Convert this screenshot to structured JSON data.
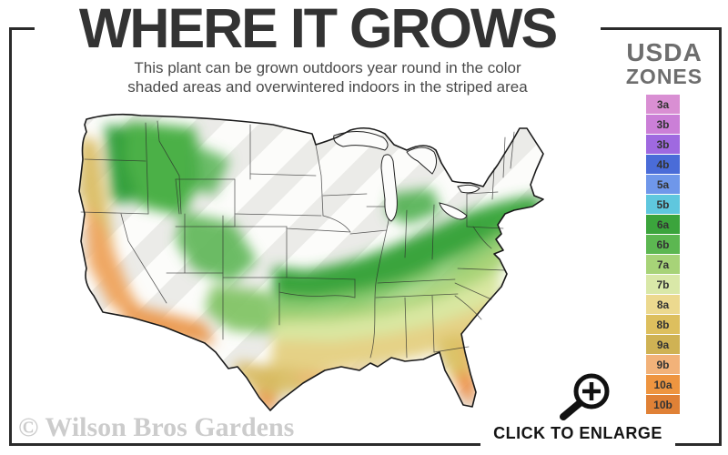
{
  "title": "WHERE IT GROWS",
  "subtitle": {
    "line1": "This plant can be grown outdoors year round in the color",
    "line2": "shaded areas and overwintered indoors in the striped area"
  },
  "legend": {
    "heading_line1": "USDA",
    "heading_line2": "ZONES",
    "zones": [
      {
        "label": "3a",
        "color": "#d98fd3"
      },
      {
        "label": "3b",
        "color": "#cb7fd7"
      },
      {
        "label": "3b",
        "color": "#9f69e0"
      },
      {
        "label": "4b",
        "color": "#4a6cd8"
      },
      {
        "label": "5a",
        "color": "#6f97ea"
      },
      {
        "label": "5b",
        "color": "#5fc7de"
      },
      {
        "label": "6a",
        "color": "#3ba43c"
      },
      {
        "label": "6b",
        "color": "#5cb751"
      },
      {
        "label": "7a",
        "color": "#a7d378"
      },
      {
        "label": "7b",
        "color": "#d9e8a8"
      },
      {
        "label": "8a",
        "color": "#ecd98f"
      },
      {
        "label": "8b",
        "color": "#ddbf5e"
      },
      {
        "label": "9a",
        "color": "#cfb254"
      },
      {
        "label": "9b",
        "color": "#f2b279"
      },
      {
        "label": "10a",
        "color": "#ee9540"
      },
      {
        "label": "10b",
        "color": "#e08136"
      }
    ]
  },
  "map": {
    "name": "usda-zones-united-states-map",
    "striped_region": "northern white striped area",
    "icons": {
      "magnifier": "magnifier-plus-icon"
    }
  },
  "watermark": "© Wilson Bros Gardens",
  "enlarge_label": "CLICK TO ENLARGE",
  "colors": {
    "frame": "#2b2b2b",
    "title": "#333333",
    "subtitle": "#4a4a4a",
    "legend_heading": "#6e6e6e",
    "watermark": "#cccccc"
  }
}
